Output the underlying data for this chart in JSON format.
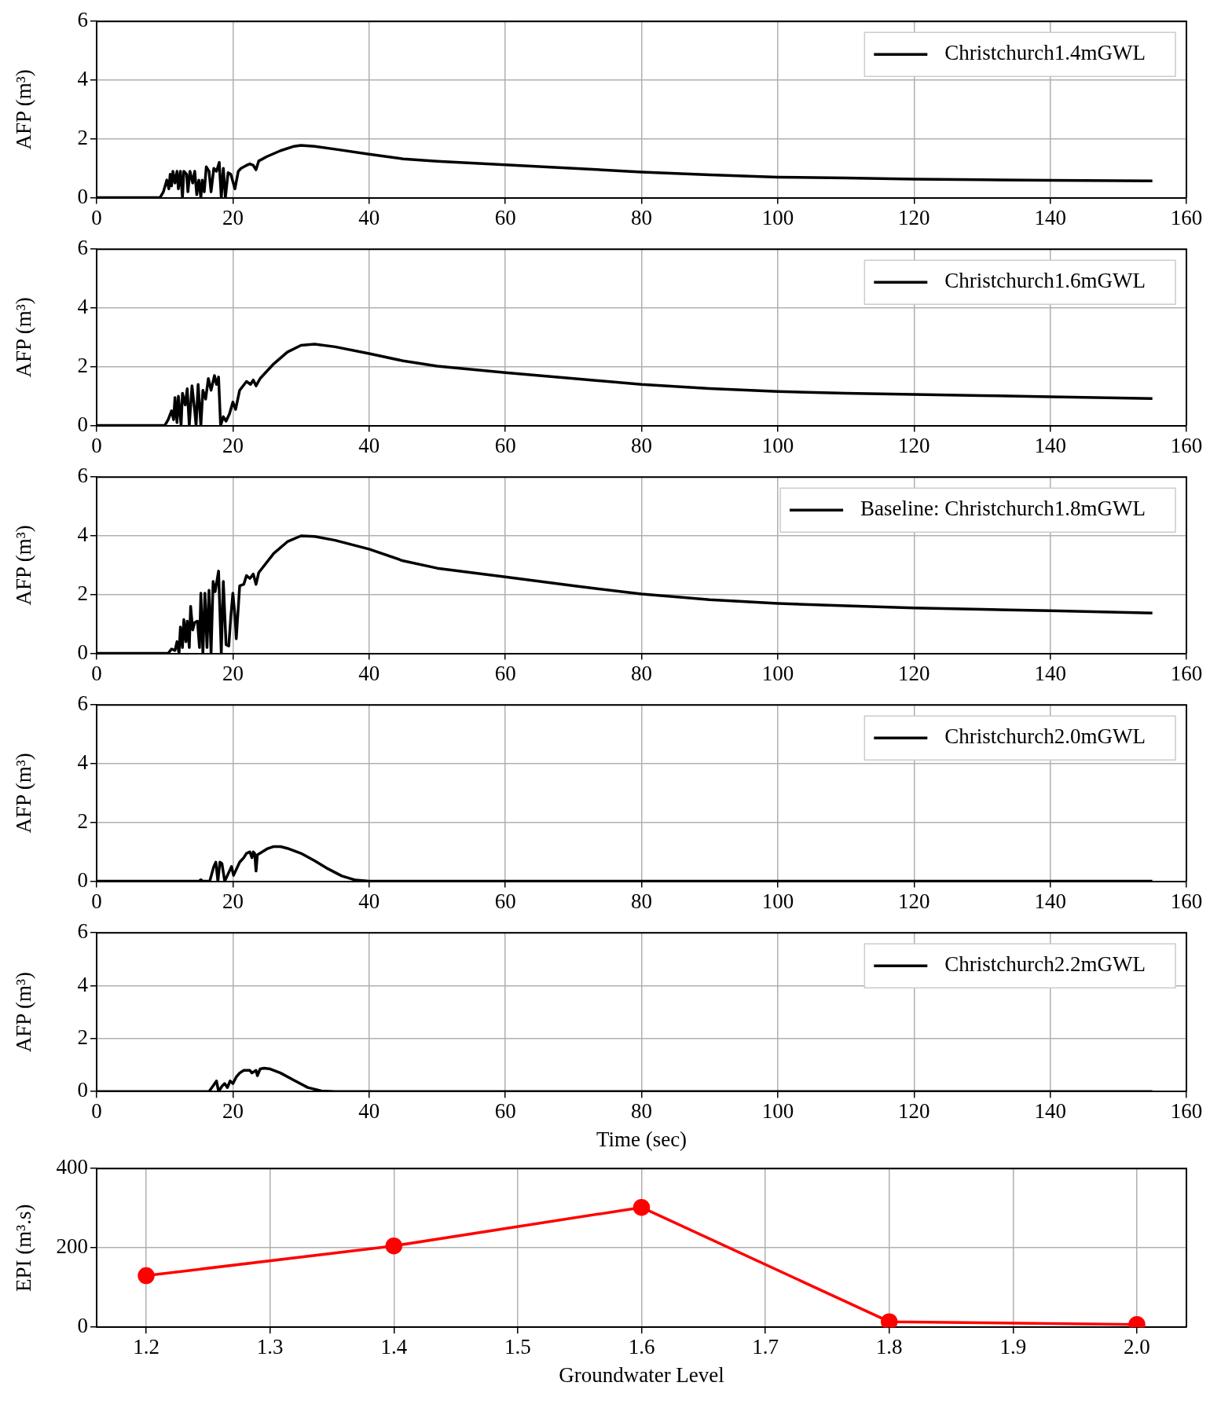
{
  "chart_data": [
    {
      "type": "line",
      "ylabel": "AFP (m³)",
      "xlim": [
        0,
        160
      ],
      "xticks": [
        0,
        20,
        40,
        60,
        80,
        100,
        120,
        140,
        160
      ],
      "ylim": [
        0,
        6
      ],
      "yticks": [
        0,
        2,
        4,
        6
      ],
      "grid": true,
      "legend": "top right",
      "marker": "none",
      "series": [
        {
          "name": "Christchurch1.4mGWL",
          "color": "#000000",
          "x": [
            0,
            9.3,
            9.8,
            10.3,
            10.6,
            10.8,
            11,
            11.2,
            11.5,
            11.8,
            12,
            12.3,
            12.6,
            12.8,
            13.2,
            13.4,
            13.7,
            14.1,
            14.4,
            14.7,
            15,
            15.3,
            15.5,
            15.8,
            16.1,
            16.5,
            16.8,
            17.2,
            17.6,
            18,
            18.3,
            18.6,
            18.9,
            19.3,
            19.7,
            20.3,
            20.8,
            21.2,
            22,
            22.5,
            23,
            23.4,
            23.8,
            25,
            27,
            29,
            30,
            32,
            35,
            40,
            45,
            50,
            60,
            70,
            80,
            90,
            100,
            110,
            120,
            130,
            140,
            155
          ],
          "values": [
            0,
            0,
            0.2,
            0.6,
            0.3,
            0.8,
            0.4,
            0.9,
            0.5,
            0.9,
            0.3,
            0.9,
            0,
            0.9,
            0.8,
            0.2,
            0.9,
            0.5,
            0.9,
            0.1,
            0.6,
            0,
            0.6,
            0.2,
            1.05,
            0.9,
            0.2,
            1.0,
            0.9,
            1.2,
            0,
            1.0,
            0,
            0.85,
            0.8,
            0.3,
            0.9,
            1.0,
            1.1,
            1.15,
            1.1,
            0.95,
            1.25,
            1.4,
            1.6,
            1.75,
            1.78,
            1.75,
            1.65,
            1.48,
            1.32,
            1.24,
            1.12,
            1.0,
            0.87,
            0.78,
            0.7,
            0.67,
            0.63,
            0.61,
            0.59,
            0.57
          ]
        }
      ]
    },
    {
      "type": "line",
      "ylabel": "AFP (m³)",
      "xlim": [
        0,
        160
      ],
      "xticks": [
        0,
        20,
        40,
        60,
        80,
        100,
        120,
        140,
        160
      ],
      "ylim": [
        0,
        6
      ],
      "yticks": [
        0,
        2,
        4,
        6
      ],
      "grid": true,
      "legend": "top right",
      "marker": "none",
      "series": [
        {
          "name": "Christchurch1.6mGWL",
          "color": "#000000",
          "x": [
            0,
            10,
            10.5,
            11,
            11.3,
            11.5,
            11.8,
            12,
            12.4,
            12.6,
            13,
            13.3,
            13.6,
            14,
            14.4,
            14.6,
            14.9,
            15.3,
            15.6,
            16,
            16.4,
            16.8,
            17.3,
            17.6,
            17.9,
            18.2,
            18.6,
            19,
            19.5,
            20,
            20.4,
            21,
            22,
            22.6,
            23,
            23.4,
            24,
            26,
            28,
            30,
            32,
            35,
            40,
            45,
            50,
            60,
            70,
            80,
            90,
            100,
            110,
            120,
            130,
            140,
            155
          ],
          "values": [
            0,
            0,
            0.2,
            0.5,
            0.2,
            0.95,
            0.1,
            1.0,
            0,
            1.1,
            0.7,
            1.25,
            0,
            1.35,
            0.5,
            0,
            1.4,
            0,
            1.2,
            0.9,
            1.6,
            1.2,
            1.7,
            1.4,
            1.65,
            0,
            0.3,
            0.15,
            0.4,
            0.8,
            0.55,
            1.2,
            1.5,
            1.4,
            1.55,
            1.35,
            1.6,
            2.1,
            2.5,
            2.73,
            2.77,
            2.68,
            2.45,
            2.2,
            2.02,
            1.8,
            1.6,
            1.4,
            1.26,
            1.16,
            1.1,
            1.06,
            1.02,
            0.98,
            0.92
          ]
        }
      ]
    },
    {
      "type": "line",
      "ylabel": "AFP (m³)",
      "xlim": [
        0,
        160
      ],
      "xticks": [
        0,
        20,
        40,
        60,
        80,
        100,
        120,
        140,
        160
      ],
      "ylim": [
        0,
        6
      ],
      "yticks": [
        0,
        2,
        4,
        6
      ],
      "grid": true,
      "legend": "top right",
      "marker": "none",
      "series": [
        {
          "name": "Baseline: Christchurch1.8mGWL",
          "color": "#000000",
          "x": [
            0,
            10.5,
            11,
            11.5,
            11.8,
            12.1,
            12.3,
            12.6,
            12.8,
            13.1,
            13.3,
            13.6,
            13.8,
            14.1,
            14.4,
            14.8,
            15.1,
            15.3,
            15.6,
            15.9,
            16.2,
            16.5,
            16.8,
            17.1,
            17.4,
            17.9,
            18.3,
            18.6,
            19,
            19.4,
            19.7,
            20,
            20.3,
            20.5,
            21,
            21.6,
            22,
            22.5,
            23,
            23.4,
            23.8,
            26,
            28,
            30,
            32,
            35,
            40,
            45,
            50,
            60,
            70,
            80,
            90,
            100,
            110,
            120,
            130,
            140,
            155
          ],
          "values": [
            0,
            0,
            0.15,
            0.1,
            0.4,
            0,
            0.9,
            0.2,
            1.15,
            0.4,
            1.1,
            0.2,
            1.6,
            0.8,
            1.05,
            1.1,
            0.2,
            2.05,
            0,
            2.05,
            0.2,
            2.15,
            0,
            2.45,
            2.1,
            2.8,
            0,
            2.45,
            0.3,
            0.25,
            1.25,
            2.05,
            1.3,
            0.5,
            2.3,
            2.35,
            2.65,
            2.55,
            2.7,
            2.35,
            2.75,
            3.4,
            3.8,
            4.0,
            3.98,
            3.85,
            3.55,
            3.15,
            2.9,
            2.6,
            2.3,
            2.02,
            1.83,
            1.7,
            1.62,
            1.55,
            1.5,
            1.45,
            1.37
          ]
        }
      ]
    },
    {
      "type": "line",
      "ylabel": "AFP (m³)",
      "xlim": [
        0,
        160
      ],
      "xticks": [
        0,
        20,
        40,
        60,
        80,
        100,
        120,
        140,
        160
      ],
      "ylim": [
        0,
        6
      ],
      "yticks": [
        0,
        2,
        4,
        6
      ],
      "grid": true,
      "legend": "top right",
      "marker": "none",
      "series": [
        {
          "name": "Christchurch2.0mGWL",
          "color": "#000000",
          "x": [
            0,
            15,
            15.3,
            15.6,
            16.6,
            17.2,
            17.5,
            17.8,
            18.1,
            18.4,
            18.8,
            19.2,
            19.8,
            20.1,
            21,
            21.6,
            22,
            22.5,
            22.8,
            23,
            23.2,
            23.4,
            23.6,
            25,
            26,
            27,
            28,
            30,
            32,
            34,
            36,
            38,
            40,
            155
          ],
          "values": [
            0,
            0,
            0.05,
            0,
            0,
            0.5,
            0.65,
            0,
            0.65,
            0.6,
            0,
            0.2,
            0.5,
            0.2,
            0.65,
            0.8,
            0.95,
            1.0,
            0.8,
            1.0,
            0.95,
            0.35,
            0.9,
            1.1,
            1.18,
            1.18,
            1.12,
            0.95,
            0.7,
            0.42,
            0.18,
            0.04,
            0,
            0
          ]
        }
      ]
    },
    {
      "type": "line",
      "xlabel": "Time (sec)",
      "ylabel": "AFP (m³)",
      "xlim": [
        0,
        160
      ],
      "xticks": [
        0,
        20,
        40,
        60,
        80,
        100,
        120,
        140,
        160
      ],
      "ylim": [
        0,
        6
      ],
      "yticks": [
        0,
        2,
        4,
        6
      ],
      "grid": true,
      "legend": "top right",
      "marker": "none",
      "series": [
        {
          "name": "Christchurch2.2mGWL",
          "color": "#000000",
          "x": [
            0,
            16.5,
            17.2,
            17.6,
            17.9,
            18.4,
            18.8,
            19.2,
            19.6,
            20,
            20.5,
            21,
            21.6,
            22.5,
            22.8,
            23.4,
            23.6,
            24,
            24.6,
            25.5,
            27,
            29,
            31,
            33,
            35,
            155
          ],
          "values": [
            0,
            0,
            0.25,
            0.4,
            0,
            0.2,
            0.3,
            0.15,
            0.4,
            0.3,
            0.55,
            0.7,
            0.8,
            0.8,
            0.7,
            0.8,
            0.6,
            0.85,
            0.88,
            0.85,
            0.7,
            0.42,
            0.15,
            0.02,
            0,
            0
          ]
        }
      ]
    },
    {
      "type": "line",
      "xlabel": "Groundwater Level",
      "ylabel": "EPI (m³.s)",
      "xlim": [
        1.16,
        2.04
      ],
      "xticks": [
        1.2,
        1.3,
        1.4,
        1.5,
        1.6,
        1.7,
        1.8,
        1.9,
        {
          "value": 2,
          "label": "2.0"
        }
      ],
      "ylim": [
        0,
        400
      ],
      "yticks": [
        0,
        200,
        400
      ],
      "grid": true,
      "marker": "circle",
      "series": [
        {
          "color": "#ff0000",
          "x": [
            1.2,
            1.4,
            1.6,
            1.8,
            2.0
          ],
          "values": [
            130,
            205,
            302,
            14,
            7
          ]
        }
      ]
    }
  ]
}
